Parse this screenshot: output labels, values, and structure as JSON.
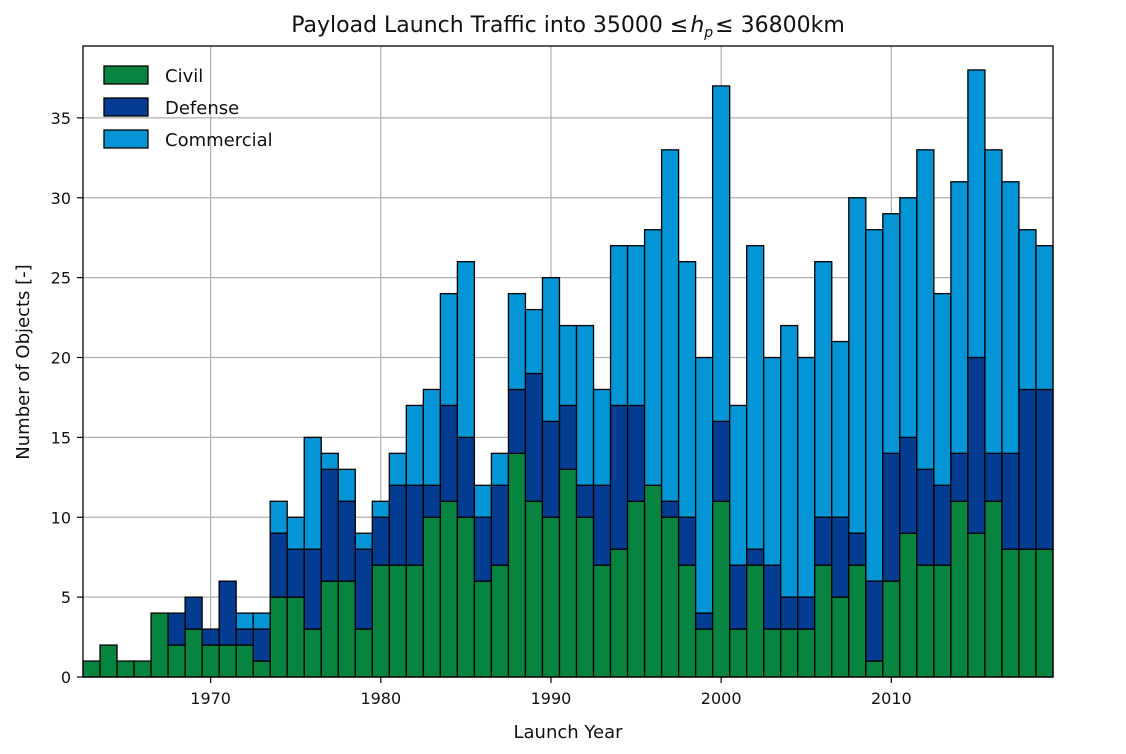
{
  "chart_data": {
    "type": "bar",
    "stacked": true,
    "title": "Payload Launch Traffic into 35000 ≤hₚ≤ 36800km",
    "title_parts": {
      "prefix": "Payload Launch Traffic into 35000 ",
      "leq1": "≤",
      "var": "h",
      "sub": "p",
      "leq2": "≤",
      "suffix": " 36800km"
    },
    "xlabel": "Launch Year",
    "ylabel": "Number of Objects [-]",
    "xlim": [
      1962.5,
      2019.5
    ],
    "ylim": [
      0,
      39.5
    ],
    "x_ticks": [
      1970,
      1980,
      1990,
      2000,
      2010
    ],
    "x_tick_labels": [
      "1970",
      "1980",
      "1990",
      "2000",
      "2010"
    ],
    "y_ticks": [
      0,
      5,
      10,
      15,
      20,
      25,
      30,
      35
    ],
    "y_tick_labels": [
      "0",
      "5",
      "10",
      "15",
      "20",
      "25",
      "30",
      "35"
    ],
    "grid": true,
    "legend_position": "top-left",
    "years": [
      1963,
      1964,
      1965,
      1966,
      1967,
      1968,
      1969,
      1970,
      1971,
      1972,
      1973,
      1974,
      1975,
      1976,
      1977,
      1978,
      1979,
      1980,
      1981,
      1982,
      1983,
      1984,
      1985,
      1986,
      1987,
      1988,
      1989,
      1990,
      1991,
      1992,
      1993,
      1994,
      1995,
      1996,
      1997,
      1998,
      1999,
      2000,
      2001,
      2002,
      2003,
      2004,
      2005,
      2006,
      2007,
      2008,
      2009,
      2010,
      2011,
      2012,
      2013,
      2014,
      2015,
      2016,
      2017,
      2018,
      2019
    ],
    "series": [
      {
        "name": "Civil",
        "color": "#078540",
        "values": [
          1,
          2,
          1,
          1,
          4,
          2,
          3,
          2,
          2,
          2,
          1,
          5,
          5,
          3,
          6,
          6,
          3,
          7,
          7,
          7,
          10,
          11,
          10,
          6,
          7,
          14,
          11,
          10,
          13,
          10,
          7,
          8,
          11,
          12,
          10,
          7,
          3,
          11,
          3,
          7,
          3,
          3,
          3,
          7,
          5,
          7,
          1,
          6,
          9,
          7,
          7,
          11,
          9,
          11,
          8,
          8,
          8
        ]
      },
      {
        "name": "Defense",
        "color": "#033c91",
        "values": [
          0,
          0,
          0,
          0,
          0,
          2,
          2,
          1,
          4,
          1,
          2,
          4,
          3,
          5,
          7,
          5,
          5,
          3,
          5,
          5,
          2,
          6,
          5,
          4,
          5,
          4,
          8,
          6,
          4,
          2,
          5,
          9,
          6,
          0,
          1,
          3,
          1,
          5,
          4,
          1,
          4,
          2,
          2,
          3,
          5,
          2,
          5,
          8,
          6,
          6,
          5,
          3,
          11,
          3,
          6,
          10,
          10
        ]
      },
      {
        "name": "Commercial",
        "color": "#0495d6",
        "values": [
          0,
          0,
          0,
          0,
          0,
          0,
          0,
          0,
          0,
          1,
          1,
          2,
          2,
          7,
          1,
          2,
          1,
          1,
          2,
          5,
          6,
          7,
          11,
          2,
          2,
          6,
          4,
          9,
          5,
          10,
          6,
          10,
          10,
          16,
          22,
          16,
          16,
          21,
          10,
          19,
          13,
          17,
          15,
          16,
          11,
          21,
          22,
          15,
          15,
          20,
          12,
          17,
          18,
          19,
          17,
          10,
          9
        ]
      }
    ]
  }
}
